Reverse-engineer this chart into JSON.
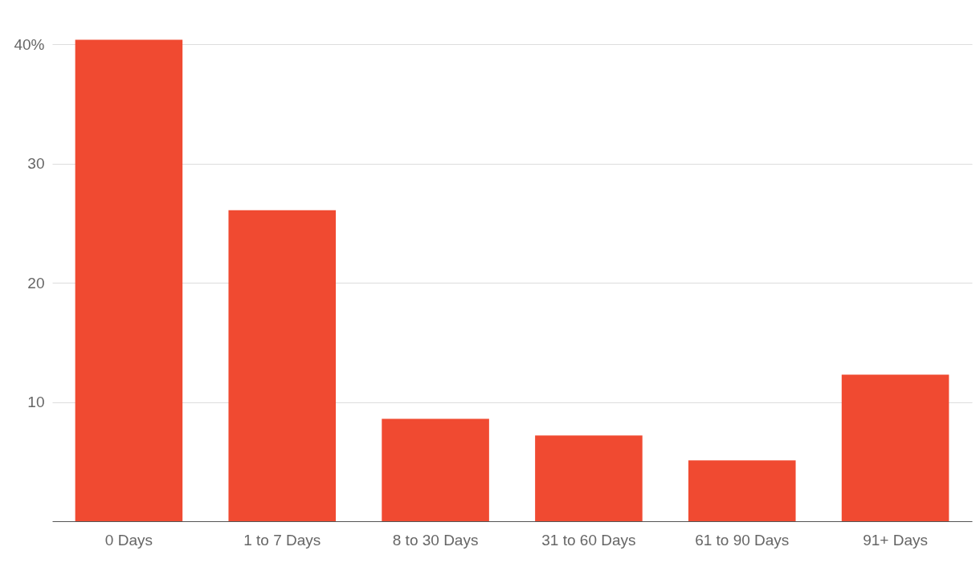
{
  "chart_data": {
    "type": "bar",
    "categories": [
      "0 Days",
      "1 to 7 Days",
      "8 to 30 Days",
      "31 to 60 Days",
      "61 to 90 Days",
      "91+ Days"
    ],
    "values": [
      40.4,
      26.1,
      8.6,
      7.2,
      5.1,
      12.3
    ],
    "color": "#f04a31",
    "ylim": [
      0,
      40.5
    ],
    "yticks": [
      10,
      20,
      30,
      {
        "value": 40,
        "label": "40%"
      }
    ],
    "grid": "y"
  }
}
